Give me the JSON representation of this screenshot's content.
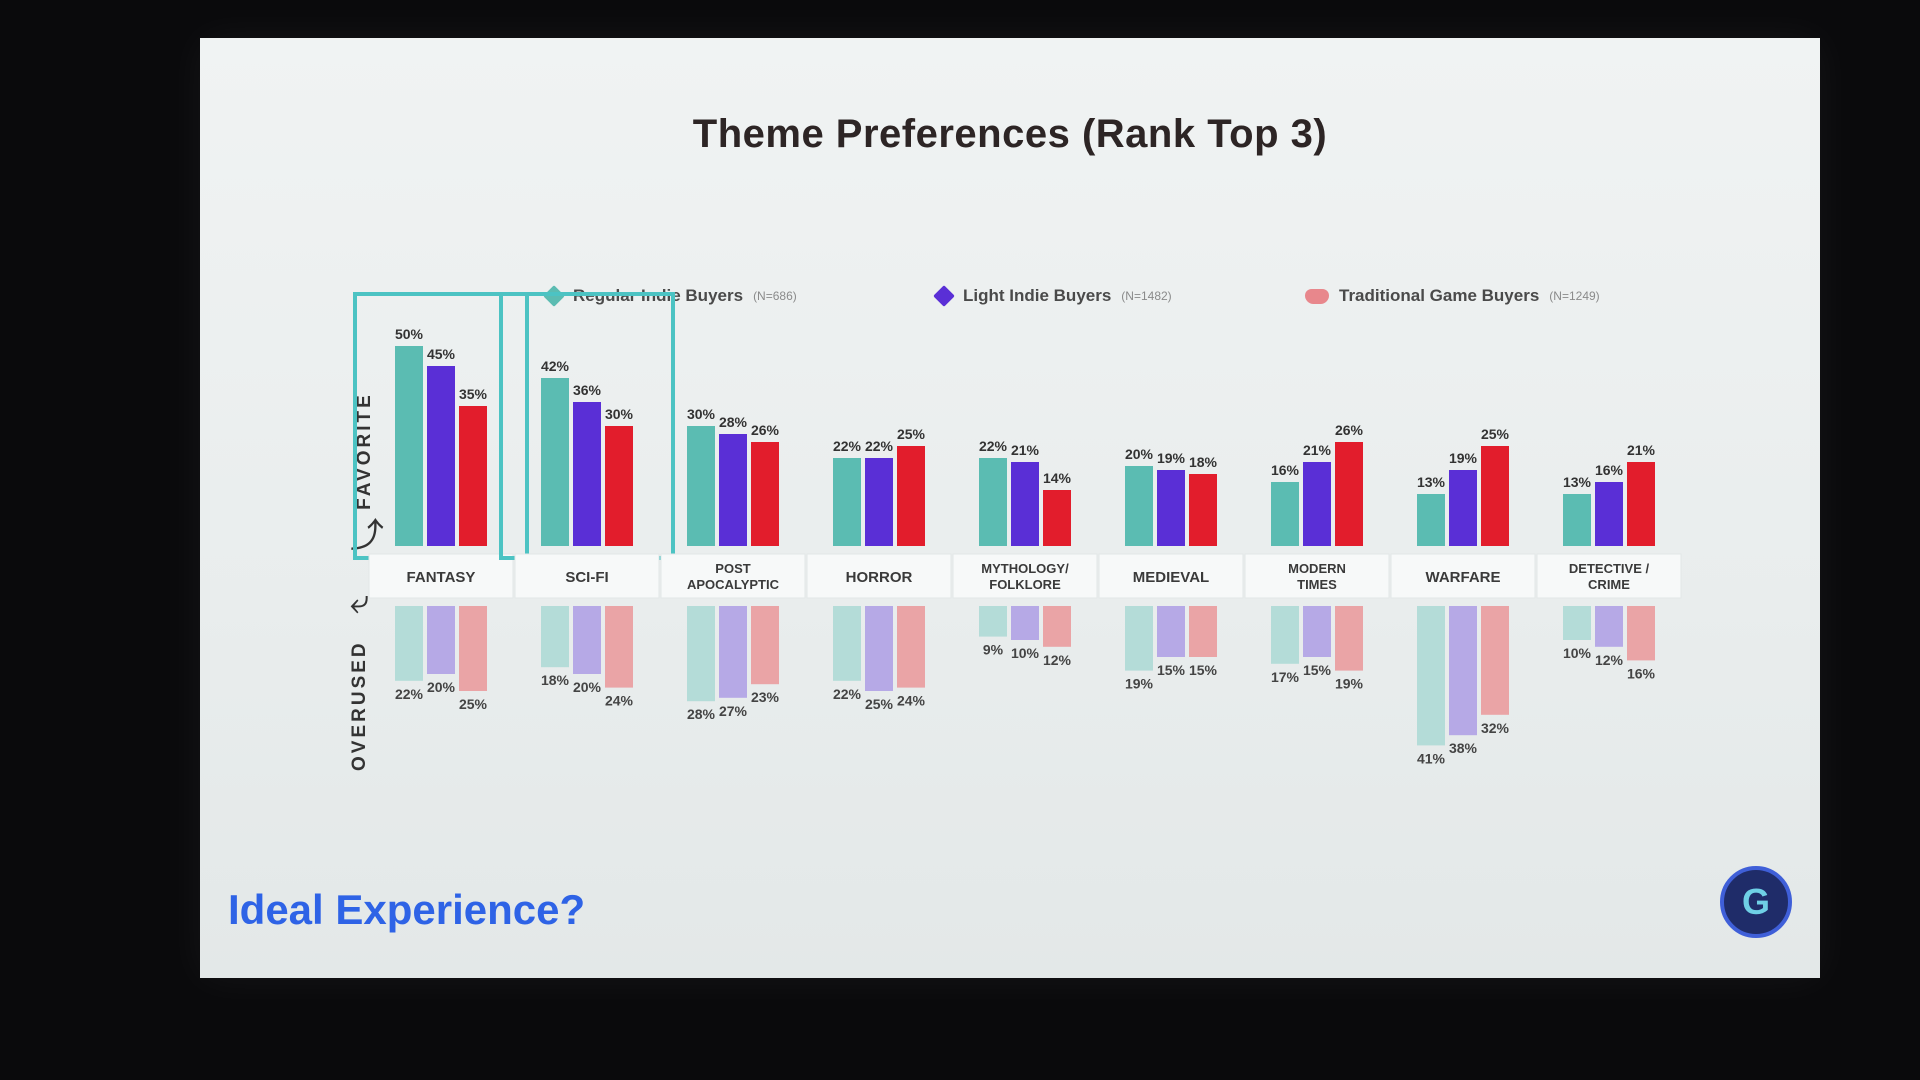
{
  "slide": {
    "title": "Theme Preferences (Rank Top 3)",
    "footer": "Ideal Experience?",
    "logo_letter": "G",
    "favorite_label": "FAVORITE",
    "overused_label": "OVERUSED"
  },
  "legend": [
    {
      "label": "Regular Indie Buyers",
      "n": "(N=686)",
      "icon": "teal-diamond-icon",
      "color": "#5bbcb2"
    },
    {
      "label": "Light Indie Buyers",
      "n": "(N=1482)",
      "icon": "purple-diamond-icon",
      "color": "#5a2fd6"
    },
    {
      "label": "Traditional Game Buyers",
      "n": "(N=1249)",
      "icon": "gamepad-icon",
      "color": "#e8878c"
    }
  ],
  "chart_data": {
    "type": "bar",
    "title": "Theme Preferences (Rank Top 3)",
    "categories": [
      "FANTASY",
      "SCI-FI",
      "POST APOCALYPTIC",
      "HORROR",
      "MYTHOLOGY/ FOLKLORE",
      "MEDIEVAL",
      "MODERN TIMES",
      "WARFARE",
      "DETECTIVE / CRIME"
    ],
    "highlighted_categories": [
      "FANTASY",
      "SCI-FI"
    ],
    "series": [
      {
        "name": "Regular Indie Buyers",
        "group": "FAVORITE",
        "color": "#5bbcb2",
        "values": [
          50,
          42,
          30,
          22,
          22,
          20,
          16,
          13,
          13
        ]
      },
      {
        "name": "Light Indie Buyers",
        "group": "FAVORITE",
        "color": "#5a2fd6",
        "values": [
          45,
          36,
          28,
          22,
          21,
          19,
          21,
          19,
          16
        ]
      },
      {
        "name": "Traditional Game Buyers",
        "group": "FAVORITE",
        "color": "#e21d2c",
        "values": [
          35,
          30,
          26,
          25,
          14,
          18,
          26,
          25,
          21
        ]
      },
      {
        "name": "Regular Indie Buyers",
        "group": "OVERUSED",
        "color": "#b4dcd8",
        "values": [
          22,
          18,
          28,
          22,
          9,
          19,
          17,
          41,
          10
        ]
      },
      {
        "name": "Light Indie Buyers",
        "group": "OVERUSED",
        "color": "#b6a9e6",
        "values": [
          20,
          20,
          27,
          25,
          10,
          15,
          15,
          38,
          12
        ]
      },
      {
        "name": "Traditional Game Buyers",
        "group": "OVERUSED",
        "color": "#eaa4a6",
        "values": [
          25,
          24,
          23,
          24,
          12,
          15,
          19,
          32,
          16
        ]
      }
    ],
    "value_format": "percent",
    "ylim": [
      0,
      50
    ],
    "legend_position": "top",
    "grid": false
  }
}
